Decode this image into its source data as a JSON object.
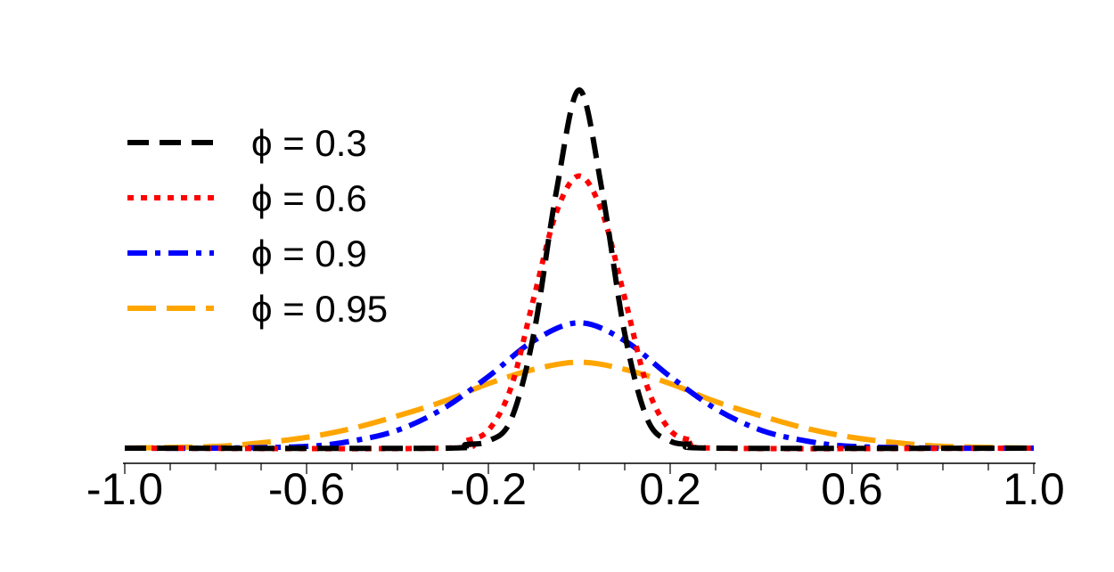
{
  "chart_data": {
    "type": "line",
    "title": "",
    "xlabel": "",
    "ylabel": "",
    "xlim": [
      -1.0,
      1.0
    ],
    "x_ticks": [
      "-1.0",
      "-0.6",
      "-0.2",
      "0.2",
      "0.6",
      "1.0"
    ],
    "x_tick_values": [
      -1.0,
      -0.6,
      -0.2,
      0.2,
      0.6,
      1.0
    ],
    "minor_tick_step": 0.1,
    "legend_position": "top-left",
    "grid": false,
    "y_axis_visible": false,
    "series": [
      {
        "name": "ϕ = 0.3",
        "color": "#000000",
        "dash": "dashed",
        "peak": 1.0,
        "x": [
          -1.0,
          -0.3,
          -0.25,
          -0.2,
          -0.15,
          -0.1,
          -0.05,
          0.0,
          0.05,
          0.1,
          0.15,
          0.2,
          0.25,
          0.3,
          1.0
        ],
        "y": [
          0.0,
          0.0,
          0.01,
          0.02,
          0.08,
          0.32,
          0.72,
          1.0,
          0.72,
          0.32,
          0.08,
          0.02,
          0.01,
          0.0,
          0.0
        ]
      },
      {
        "name": "ϕ = 0.6",
        "color": "#ff0000",
        "dash": "dotted",
        "peak": 0.76,
        "x": [
          -1.0,
          -0.3,
          -0.25,
          -0.2,
          -0.15,
          -0.1,
          -0.05,
          0.0,
          0.05,
          0.1,
          0.15,
          0.2,
          0.25,
          0.3,
          1.0
        ],
        "y": [
          0.0,
          0.0,
          0.02,
          0.05,
          0.17,
          0.42,
          0.66,
          0.76,
          0.66,
          0.42,
          0.17,
          0.05,
          0.02,
          0.0,
          0.0
        ]
      },
      {
        "name": "ϕ = 0.9",
        "color": "#0000ff",
        "dash": "dashdot",
        "peak": 0.35,
        "x": [
          -1.0,
          -0.8,
          -0.6,
          -0.5,
          -0.4,
          -0.3,
          -0.2,
          -0.1,
          0.0,
          0.1,
          0.2,
          0.3,
          0.4,
          0.5,
          0.6,
          0.8,
          1.0
        ],
        "y": [
          0.0,
          0.0,
          0.005,
          0.02,
          0.05,
          0.11,
          0.2,
          0.3,
          0.35,
          0.3,
          0.2,
          0.11,
          0.05,
          0.02,
          0.005,
          0.0,
          0.0
        ]
      },
      {
        "name": "ϕ = 0.95",
        "color": "#ffa500",
        "dash": "longdash",
        "peak": 0.24,
        "x": [
          -1.0,
          -0.8,
          -0.7,
          -0.6,
          -0.5,
          -0.4,
          -0.3,
          -0.2,
          -0.1,
          0.0,
          0.1,
          0.2,
          0.3,
          0.4,
          0.5,
          0.6,
          0.7,
          0.8,
          1.0
        ],
        "y": [
          0.0,
          0.005,
          0.015,
          0.03,
          0.055,
          0.09,
          0.13,
          0.18,
          0.22,
          0.24,
          0.22,
          0.18,
          0.13,
          0.09,
          0.055,
          0.03,
          0.015,
          0.005,
          0.0
        ]
      }
    ]
  }
}
